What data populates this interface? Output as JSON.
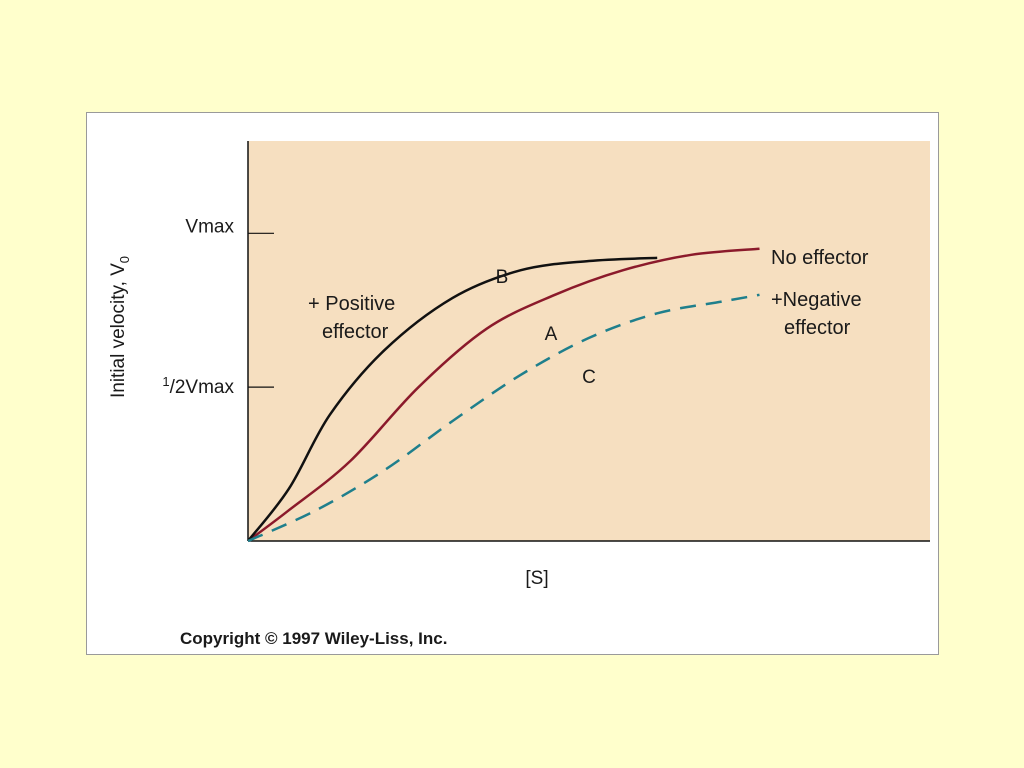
{
  "chart_data": {
    "type": "line",
    "title": "",
    "xlabel": "[S]",
    "ylabel": "Initial velocity, V",
    "ylabel_sub": "0",
    "y_ticks": [
      {
        "value": 1.0,
        "label": "Vmax"
      },
      {
        "value": 0.5,
        "label_sup": "1",
        "label_main": "/2Vmax"
      }
    ],
    "xlim": [
      0,
      1
    ],
    "ylim": [
      0,
      1.3
    ],
    "series": [
      {
        "id": "no-effector",
        "name": "No effector",
        "letter": "A",
        "color": "#8b1a2b",
        "dash": "solid",
        "x": [
          0,
          0.06,
          0.15,
          0.25,
          0.35,
          0.45,
          0.55,
          0.65,
          0.75
        ],
        "y": [
          0,
          0.1,
          0.26,
          0.5,
          0.69,
          0.8,
          0.88,
          0.93,
          0.95
        ]
      },
      {
        "id": "positive-effector",
        "name_line1": "+ Positive",
        "name_line2": "effector",
        "letter": "B",
        "color": "#111111",
        "dash": "solid",
        "x": [
          0,
          0.06,
          0.12,
          0.2,
          0.3,
          0.4,
          0.5,
          0.6
        ],
        "y": [
          0,
          0.17,
          0.41,
          0.62,
          0.79,
          0.88,
          0.91,
          0.92
        ]
      },
      {
        "id": "negative-effector",
        "name_line1": "+Negative",
        "name_line2": "effector",
        "letter": "C",
        "color": "#1f7f8c",
        "dash": "dashed",
        "x": [
          0,
          0.1,
          0.2,
          0.3,
          0.4,
          0.5,
          0.6,
          0.7,
          0.75
        ],
        "y": [
          0,
          0.1,
          0.23,
          0.39,
          0.54,
          0.66,
          0.74,
          0.78,
          0.8
        ]
      }
    ],
    "grid": false,
    "colors": {
      "page_background": "#ffffcc",
      "plot_background": "#f6dfc0",
      "axis": "#111111"
    }
  },
  "copyright": "Copyright © 1997 Wiley-Liss, Inc."
}
